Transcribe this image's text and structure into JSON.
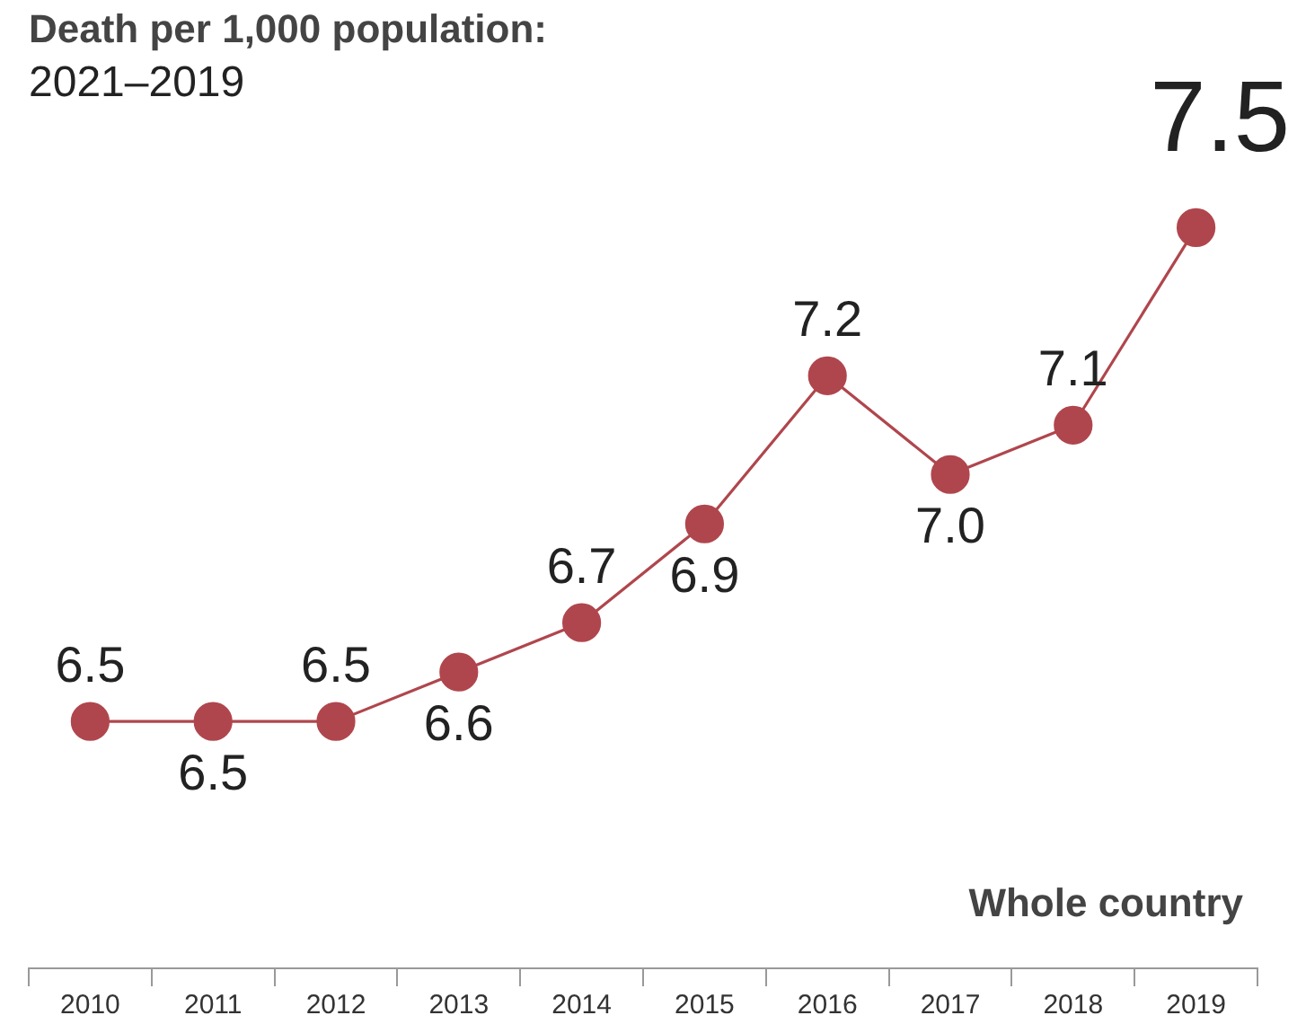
{
  "chart_data": {
    "type": "line",
    "title": "Death per 1,000 population:",
    "subtitle": "2021–2019",
    "categories": [
      "2010",
      "2011",
      "2012",
      "2013",
      "2014",
      "2015",
      "2016",
      "2017",
      "2018",
      "2019"
    ],
    "series": [
      {
        "color": "#b0464d",
        "values": [
          6.5,
          6.5,
          6.5,
          6.6,
          6.7,
          6.9,
          7.2,
          7.0,
          7.1,
          7.5
        ],
        "value_labels": [
          "6.5",
          "6.5",
          "6.5",
          "6.6",
          "6.7",
          "6.9",
          "7.2",
          "7.0",
          "7.1",
          "7.5"
        ]
      }
    ],
    "annotations": [
      "Whole country"
    ],
    "marker": "circle",
    "line_style": "solid",
    "grid": false,
    "legend": false,
    "tick_labels": "x"
  }
}
